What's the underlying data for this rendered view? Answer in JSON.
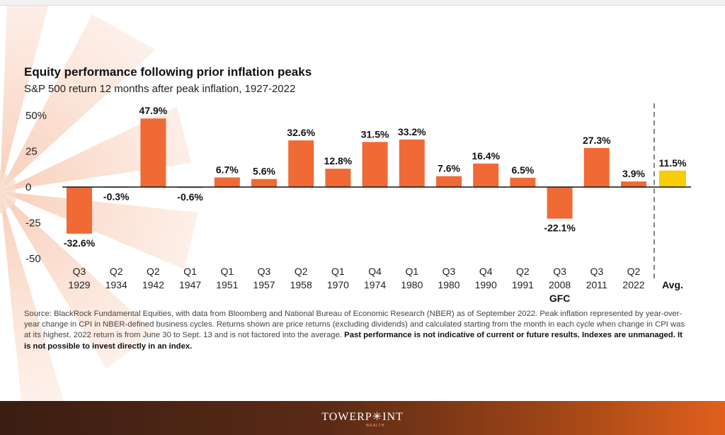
{
  "title": "Equity performance following prior inflation peaks",
  "subtitle": "S&P 500 return 12 months after peak inflation, 1927-2022",
  "source_text": "Source: BlackRock Fundamental Equities, with data from Bloomberg and National Bureau of Economic Research (NBER) as of September 2022. Peak inflation represented by year-over-year change in CPI in NBER-defined business cycles. Returns shown are price returns (excluding dividends) and calculated starting from the month in each cycle when change in CPI was at its highest. 2022 return is from June 30 to Sept. 13 and is not factored into the average.",
  "source_bold": "Past performance is not indicative of current or future results. Indexes are unmanaged. It is not possible to invest directly in an index.",
  "footer": {
    "logo": "TOWERP✳INT",
    "sub": "WEALTH"
  },
  "colors": {
    "bar": "#f06a35",
    "avg_bar": "#f7cd0a",
    "axis": "#111111",
    "text": "#222222"
  },
  "chart_data": {
    "type": "bar",
    "title": "Equity performance following prior inflation peaks",
    "subtitle": "S&P 500 return 12 months after peak inflation, 1927-2022",
    "xlabel": "",
    "ylabel": "",
    "ylim": [
      -50,
      50
    ],
    "yticks": [
      {
        "value": 50,
        "label": "50%"
      },
      {
        "value": 25,
        "label": "25"
      },
      {
        "value": 0,
        "label": "0"
      },
      {
        "value": -25,
        "label": "-25"
      },
      {
        "value": -50,
        "label": "-50"
      }
    ],
    "categories": [
      {
        "q": "Q3",
        "year": "1929",
        "note": ""
      },
      {
        "q": "Q2",
        "year": "1934",
        "note": ""
      },
      {
        "q": "Q2",
        "year": "1942",
        "note": ""
      },
      {
        "q": "Q1",
        "year": "1947",
        "note": ""
      },
      {
        "q": "Q1",
        "year": "1951",
        "note": ""
      },
      {
        "q": "Q3",
        "year": "1957",
        "note": ""
      },
      {
        "q": "Q2",
        "year": "1958",
        "note": ""
      },
      {
        "q": "Q1",
        "year": "1970",
        "note": ""
      },
      {
        "q": "Q4",
        "year": "1974",
        "note": ""
      },
      {
        "q": "Q1",
        "year": "1980",
        "note": ""
      },
      {
        "q": "Q3",
        "year": "1980",
        "note": ""
      },
      {
        "q": "Q4",
        "year": "1990",
        "note": ""
      },
      {
        "q": "Q2",
        "year": "1991",
        "note": ""
      },
      {
        "q": "Q3",
        "year": "2008",
        "note": "GFC"
      },
      {
        "q": "Q3",
        "year": "2011",
        "note": ""
      },
      {
        "q": "Q2",
        "year": "2022",
        "note": ""
      }
    ],
    "values": [
      -32.6,
      -0.3,
      47.9,
      -0.6,
      6.7,
      5.6,
      32.6,
      12.8,
      31.5,
      33.2,
      7.6,
      16.4,
      6.5,
      -22.1,
      27.3,
      3.9
    ],
    "labels": [
      "-32.6%",
      "-0.3%",
      "47.9%",
      "-0.6%",
      "6.7%",
      "5.6%",
      "32.6%",
      "12.8%",
      "31.5%",
      "33.2%",
      "7.6%",
      "16.4%",
      "6.5%",
      "-22.1%",
      "27.3%",
      "3.9%"
    ],
    "average": {
      "label": "Avg.",
      "value": 11.5,
      "value_label": "11.5%"
    }
  }
}
